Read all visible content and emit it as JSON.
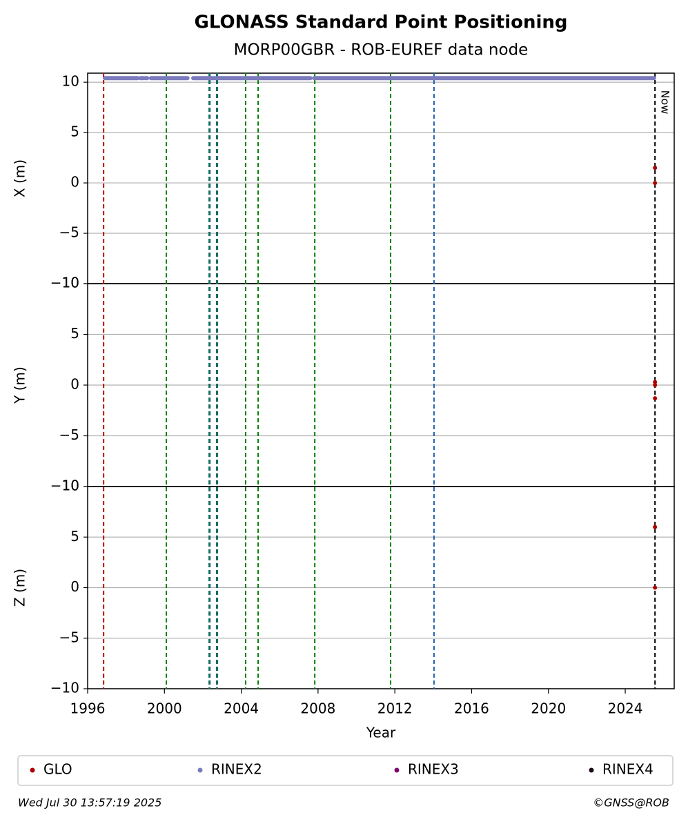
{
  "chart_data": {
    "type": "scatter",
    "title": "GLONASS Standard Point Positioning",
    "subtitle": "MORP00GBR - ROB-EUREF data node",
    "xlabel": "Year",
    "xlim": [
      1996,
      2026.55
    ],
    "xticks": [
      1996,
      2000,
      2004,
      2008,
      2012,
      2016,
      2020,
      2024
    ],
    "grid": true,
    "panels": [
      {
        "ylabel": "X (m)",
        "ylim": [
          -10,
          10.9
        ],
        "yticks": [
          {
            "value": -10,
            "label": "−10"
          },
          {
            "value": -5,
            "label": "−5"
          },
          0,
          5,
          10
        ],
        "glo_x": [
          2025.55,
          2025.55
        ],
        "glo_values": [
          1.5,
          0
        ],
        "rinex2_level": 10.4,
        "rinex2_ranges": [
          [
            1996.9,
            1998.6
          ],
          [
            1998.75,
            1998.9
          ],
          [
            1999.0,
            1999.1
          ],
          [
            1999.3,
            2001.2
          ],
          [
            2001.5,
            2007.6
          ],
          [
            2007.8,
            2025.5
          ]
        ]
      },
      {
        "ylabel": "Y (m)",
        "ylim": [
          -10,
          10
        ],
        "yticks": [
          {
            "value": -10,
            "label": "−10"
          },
          {
            "value": -5,
            "label": "−5"
          },
          0,
          5,
          10
        ],
        "glo_x": [
          2025.55,
          2025.55,
          2025.55
        ],
        "glo_values": [
          0.3,
          0,
          -1.3
        ]
      },
      {
        "ylabel": "Z (m)",
        "ylim": [
          -10,
          10
        ],
        "yticks": [
          {
            "value": -10,
            "label": "−10"
          },
          {
            "value": -5,
            "label": "−5"
          },
          0,
          5,
          10
        ],
        "glo_x": [
          2025.55,
          2025.55
        ],
        "glo_values": [
          6,
          0
        ]
      }
    ],
    "events": [
      {
        "x": 1996.83,
        "color": "#008000"
      },
      {
        "x": 1996.83,
        "color": "#d00000"
      },
      {
        "x": 2000.1,
        "color": "#008000"
      },
      {
        "x": 2002.33,
        "color": "#008000"
      },
      {
        "x": 2002.37,
        "color": "#1f5fa8"
      },
      {
        "x": 2002.72,
        "color": "#008000"
      },
      {
        "x": 2002.76,
        "color": "#1f5fa8"
      },
      {
        "x": 2004.23,
        "color": "#008000"
      },
      {
        "x": 2004.88,
        "color": "#008000"
      },
      {
        "x": 2007.83,
        "color": "#008000"
      },
      {
        "x": 2011.78,
        "color": "#008000"
      },
      {
        "x": 2014.04,
        "color": "#1f5fa8"
      }
    ],
    "now": {
      "x": 2025.55,
      "label": "Now",
      "color": "#000000"
    },
    "series": [
      {
        "name": "GLO",
        "color": "#b00000"
      },
      {
        "name": "RINEX2",
        "color": "#7b7bbd"
      },
      {
        "name": "RINEX3",
        "color": "#7a0a6f"
      },
      {
        "name": "RINEX4",
        "color": "#1a0a1a"
      }
    ],
    "timestamp": "Wed Jul 30 13:57:19 2025",
    "credit": "©GNSS@ROB"
  }
}
